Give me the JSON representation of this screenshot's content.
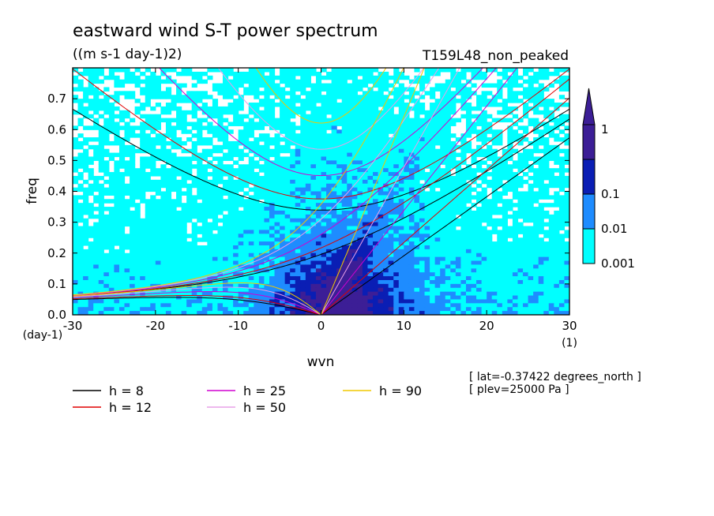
{
  "title": "eastward wind S-T power spectrum",
  "units": "((m s-1 day-1)2)",
  "experiment": "T159L48_non_peaked",
  "xlabel": "wvn",
  "ylabel": "freq",
  "x_unit": "(1)",
  "y_unit": "(day-1)",
  "info": [
    "[ lat=-0.37422 degrees_north ]",
    "[ plev=25000 Pa ]"
  ],
  "chart_data": {
    "type": "heatmap",
    "xlim": [
      -30,
      30
    ],
    "ylim": [
      0,
      0.8
    ],
    "xticks": [
      -30,
      -20,
      -10,
      0,
      10,
      20,
      30
    ],
    "xtick_labels": [
      "-30",
      "-20",
      "-10",
      "0",
      "10",
      "20",
      "30"
    ],
    "yticks": [
      0,
      0.1,
      0.2,
      0.3,
      0.4,
      0.5,
      0.6,
      0.7
    ],
    "ytick_labels": [
      "0.0",
      "0.1",
      "0.2",
      "0.3",
      "0.4",
      "0.5",
      "0.6",
      "0.7"
    ],
    "colorbar": {
      "levels": [
        0.001,
        0.01,
        0.1,
        1
      ],
      "labels": [
        "0.001",
        "0.01",
        "0.1",
        "1"
      ],
      "colors": [
        "#00ffff",
        "#1e8cff",
        "#0a1eb4",
        "#3c1e96"
      ],
      "extend": "max"
    },
    "dispersion_curves": [
      {
        "name": "h =  8",
        "h": 8,
        "color": "#000000"
      },
      {
        "name": "h = 12",
        "h": 12,
        "color": "#e00000"
      },
      {
        "name": "h = 25",
        "h": 25,
        "color": "#d000d0"
      },
      {
        "name": "h = 50",
        "h": 50,
        "color": "#e8a0e8"
      },
      {
        "name": "h = 90",
        "h": 90,
        "color": "#f0c800"
      }
    ],
    "legend_placement": "below"
  }
}
